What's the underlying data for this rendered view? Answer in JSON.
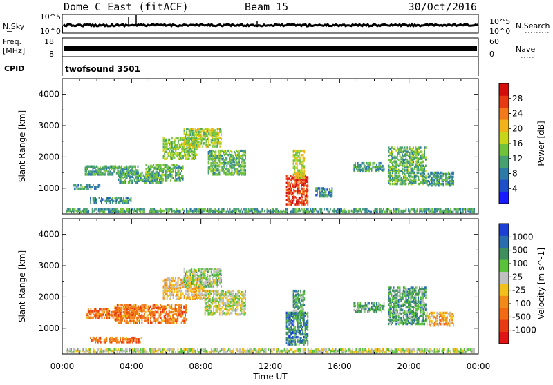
{
  "header": {
    "station": "Dome C East (fitACF)",
    "beam": "Beam 15",
    "date": "30/Oct/2016"
  },
  "top_panels": {
    "nsky_label": "N.Sky",
    "nsky_ticks": [
      "10^5",
      "10^0"
    ],
    "nsearch_label": "N.Search",
    "nsearch_ticks": [
      "10^5",
      "10^0"
    ],
    "freq_label": "Freq.",
    "freq_unit": "[MHz]",
    "freq_ticks": [
      "18",
      "8"
    ],
    "nave_label": "Nave",
    "nave_ticks": [
      "60",
      "0"
    ],
    "cpid_label": "CPID",
    "cpid_value": "twofsound 3501"
  },
  "chart_data": [
    {
      "type": "heatmap",
      "name": "power",
      "ylabel": "Slant Range [km]",
      "xlabel": "Time UT",
      "xlim": [
        0,
        24
      ],
      "ylim": [
        180,
        4500
      ],
      "yticks": [
        "1000",
        "2000",
        "3000",
        "4000"
      ],
      "xticks": [
        "00:00",
        "04:00",
        "08:00",
        "12:00",
        "16:00",
        "20:00",
        "00:00"
      ],
      "colorbar": {
        "label": "Power [dB]",
        "ticks": [
          "4",
          "8",
          "12",
          "16",
          "20",
          "24",
          "28"
        ],
        "colors": [
          "#1a1aff",
          "#1e4fc8",
          "#2e7aa6",
          "#46a070",
          "#6fc23a",
          "#c8d61a",
          "#f2b21a",
          "#f27a1a",
          "#e83a12",
          "#d40c0c"
        ]
      },
      "clusters": [
        {
          "t0": 0.6,
          "t1": 2.2,
          "r0": 950,
          "r1": 1100,
          "level": 0.3
        },
        {
          "t0": 1.6,
          "t1": 4.0,
          "r0": 500,
          "r1": 700,
          "level": 0.3
        },
        {
          "t0": 1.3,
          "t1": 4.4,
          "r0": 1400,
          "r1": 1700,
          "level": 0.35
        },
        {
          "t0": 3.2,
          "t1": 5.8,
          "r0": 1150,
          "r1": 1500,
          "level": 0.35
        },
        {
          "t0": 4.8,
          "t1": 7.0,
          "r0": 1200,
          "r1": 1750,
          "level": 0.4
        },
        {
          "t0": 5.8,
          "t1": 7.8,
          "r0": 1900,
          "r1": 2600,
          "level": 0.45
        },
        {
          "t0": 7.0,
          "t1": 9.2,
          "r0": 2300,
          "r1": 2900,
          "level": 0.5
        },
        {
          "t0": 8.4,
          "t1": 10.6,
          "r0": 1400,
          "r1": 2200,
          "level": 0.4
        },
        {
          "t0": 12.9,
          "t1": 14.2,
          "r0": 450,
          "r1": 1400,
          "level": 0.85
        },
        {
          "t0": 13.3,
          "t1": 14.0,
          "r0": 1300,
          "r1": 2200,
          "level": 0.55
        },
        {
          "t0": 14.6,
          "t1": 15.6,
          "r0": 700,
          "r1": 1000,
          "level": 0.3
        },
        {
          "t0": 16.8,
          "t1": 18.6,
          "r0": 1500,
          "r1": 1800,
          "level": 0.35
        },
        {
          "t0": 18.8,
          "t1": 21.0,
          "r0": 1100,
          "r1": 2300,
          "level": 0.4
        },
        {
          "t0": 21.0,
          "t1": 22.6,
          "r0": 1050,
          "r1": 1500,
          "level": 0.35
        },
        {
          "t0": 0.2,
          "t1": 23.8,
          "r0": 200,
          "r1": 320,
          "level": 0.35
        }
      ]
    },
    {
      "type": "heatmap",
      "name": "velocity",
      "ylabel": "Slant Range [km]",
      "xlabel": "Time UT",
      "xlim": [
        0,
        24
      ],
      "ylim": [
        180,
        4500
      ],
      "yticks": [
        "1000",
        "2000",
        "3000",
        "4000"
      ],
      "xticks": [
        "00:00",
        "04:00",
        "08:00",
        "12:00",
        "16:00",
        "20:00",
        "00:00"
      ],
      "colorbar": {
        "label": "Velocity [m s^-1]",
        "ticks": [
          "1000",
          "500",
          "100",
          "25",
          "-25",
          "-100",
          "-500",
          "-1000"
        ],
        "colors": [
          "#1c3fd6",
          "#2a6eae",
          "#3f8f5e",
          "#5ac23a",
          "#c0c0c0",
          "#f2c01a",
          "#f28a1a",
          "#f26a12",
          "#e83a12",
          "#e01414"
        ]
      },
      "clusters": [
        {
          "t0": 1.4,
          "t1": 4.4,
          "r0": 1300,
          "r1": 1600,
          "level": 0.72
        },
        {
          "t0": 1.6,
          "t1": 4.6,
          "r0": 520,
          "r1": 700,
          "level": 0.72
        },
        {
          "t0": 3.0,
          "t1": 7.2,
          "r0": 1150,
          "r1": 1750,
          "level": 0.72
        },
        {
          "t0": 5.8,
          "t1": 8.2,
          "r0": 1900,
          "r1": 2600,
          "level": 0.55
        },
        {
          "t0": 7.0,
          "t1": 9.2,
          "r0": 2300,
          "r1": 2900,
          "level": 0.4
        },
        {
          "t0": 8.2,
          "t1": 10.6,
          "r0": 1400,
          "r1": 2200,
          "level": 0.45
        },
        {
          "t0": 12.9,
          "t1": 14.2,
          "r0": 450,
          "r1": 1500,
          "level": 0.2
        },
        {
          "t0": 13.3,
          "t1": 14.0,
          "r0": 1300,
          "r1": 2200,
          "level": 0.3
        },
        {
          "t0": 16.8,
          "t1": 18.6,
          "r0": 1500,
          "r1": 1800,
          "level": 0.3
        },
        {
          "t0": 18.8,
          "t1": 21.0,
          "r0": 1100,
          "r1": 2300,
          "level": 0.3
        },
        {
          "t0": 21.0,
          "t1": 22.6,
          "r0": 1050,
          "r1": 1500,
          "level": 0.6
        },
        {
          "t0": 0.2,
          "t1": 23.8,
          "r0": 200,
          "r1": 320,
          "level": 0.45
        }
      ]
    }
  ]
}
